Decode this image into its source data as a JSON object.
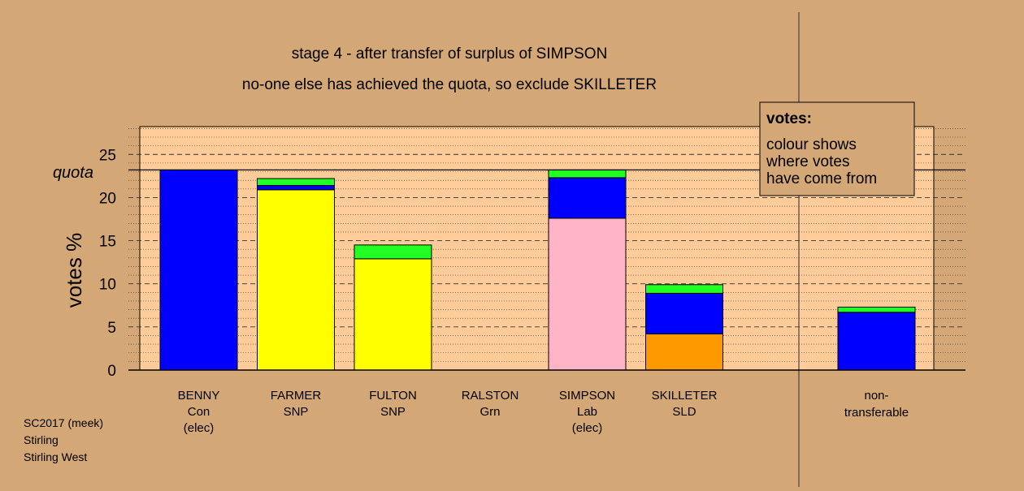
{
  "title_line1": "stage 4 - after transfer of surplus of SIMPSON",
  "title_line2": "no-one else has achieved the quota, so exclude SKILLETER",
  "ylabel": "votes %",
  "quota_label": "quota",
  "quota_value": 23.2,
  "legend": {
    "title": "votes:",
    "lines": [
      "colour shows",
      "where votes",
      "have come from"
    ]
  },
  "footer": [
    "SC2017 (meek)",
    "Stirling",
    "Stirling West"
  ],
  "colors": {
    "background": "#d4a876",
    "plot_bg": "#ffcc99",
    "blue": "#0000ff",
    "yellow": "#ffff00",
    "green": "#22ff22",
    "pink": "#ffb3c6",
    "orange": "#ff9900"
  },
  "chart_data": {
    "type": "bar",
    "stacked": true,
    "ylim": [
      0,
      28
    ],
    "yticks": [
      0,
      5,
      10,
      15,
      20,
      25
    ],
    "grid": true,
    "legend_position": "top-right",
    "categories": [
      {
        "name": "BENNY",
        "party": "Con",
        "note": "(elec)",
        "segments": [
          {
            "color": "#0000ff",
            "value": 23.2
          }
        ]
      },
      {
        "name": "FARMER",
        "party": "SNP",
        "note": "",
        "segments": [
          {
            "color": "#ffff00",
            "value": 20.9
          },
          {
            "color": "#0000ff",
            "value": 0.5
          },
          {
            "color": "#22ff22",
            "value": 0.8
          }
        ]
      },
      {
        "name": "FULTON",
        "party": "SNP",
        "note": "",
        "segments": [
          {
            "color": "#ffff00",
            "value": 12.9
          },
          {
            "color": "#22ff22",
            "value": 1.6
          }
        ]
      },
      {
        "name": "RALSTON",
        "party": "Grn",
        "note": "",
        "segments": []
      },
      {
        "name": "SIMPSON",
        "party": "Lab",
        "note": "(elec)",
        "segments": [
          {
            "color": "#ffb3c6",
            "value": 17.6
          },
          {
            "color": "#0000ff",
            "value": 4.7
          },
          {
            "color": "#22ff22",
            "value": 0.9
          }
        ]
      },
      {
        "name": "SKILLETER",
        "party": "SLD",
        "note": "",
        "segments": [
          {
            "color": "#ff9900",
            "value": 4.2
          },
          {
            "color": "#0000ff",
            "value": 4.7
          },
          {
            "color": "#22ff22",
            "value": 1.0
          }
        ]
      }
    ],
    "nontransferable": {
      "label_lines": [
        "non-",
        "transferable"
      ],
      "segments": [
        {
          "color": "#0000ff",
          "value": 6.7
        },
        {
          "color": "#22ff22",
          "value": 0.6
        }
      ]
    }
  }
}
